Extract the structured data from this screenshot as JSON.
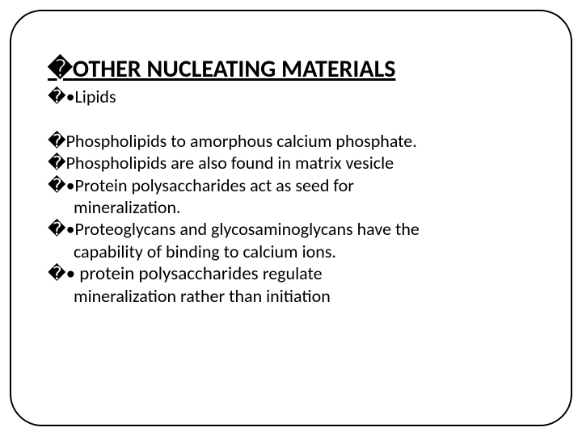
{
  "heading": {
    "glyph": "�",
    "text": "OTHER NUCLEATING MATERIALS"
  },
  "subheading": {
    "glyph": "�",
    "bullet": "•",
    "text": "Lipids"
  },
  "lines": {
    "l1_glyph": "�",
    "l1_text": "Phospholipids to amorphous calcium phosphate.",
    "l2_glyph": "�",
    "l2_text": "Phospholipids are also found in matrix vesicle",
    "l3_glyph": "�",
    "l3_bullet": "•",
    "l3_text": "Protein polysaccharides act as seed for",
    "l3b_text": "mineralization.",
    "l4_glyph": "�",
    "l4_bullet": "•",
    "l4_text": "Proteoglycans and glycosaminoglycans have the",
    "l4b_text": "capability of binding to calcium ions.",
    "l5_glyph": "�",
    "l5_bullet": "•",
    "l5_lead": " protein polysaccharides ",
    "l5_tail": "regulate",
    "l5b_text": "mineralization rather than initiation"
  }
}
